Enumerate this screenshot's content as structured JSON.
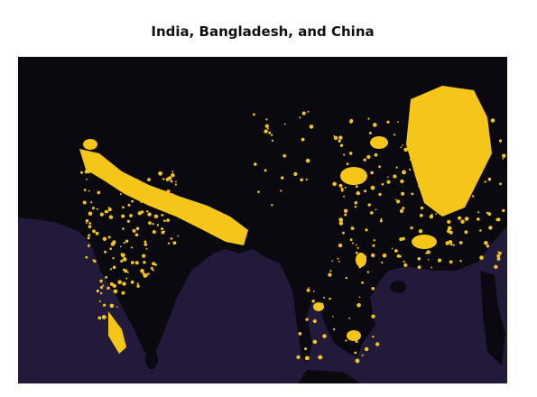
{
  "title": "India, Bangladesh, and China"
}
